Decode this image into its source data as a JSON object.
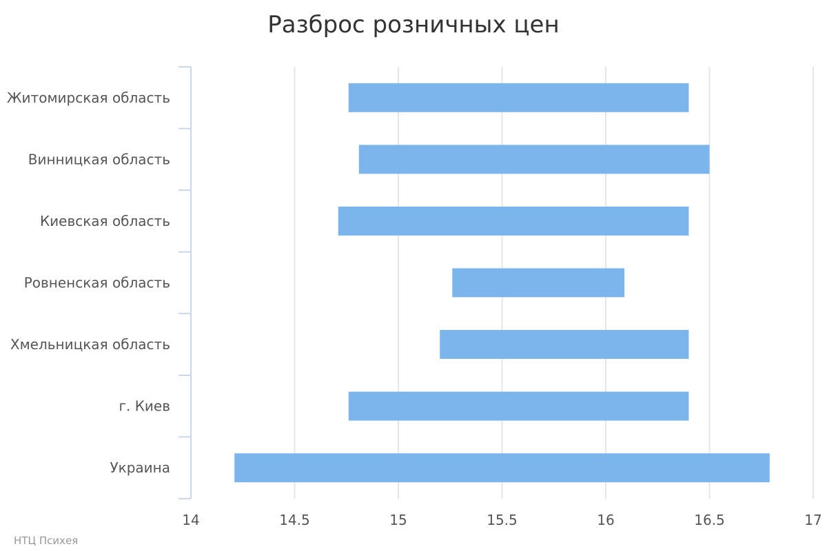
{
  "chart_data": {
    "type": "bar",
    "orientation": "horizontal",
    "range_bars": true,
    "title": "Разброс розничных цен",
    "credit": "НТЦ Психея",
    "xlabel": "",
    "ylabel": "",
    "xlim": [
      14,
      17
    ],
    "x_ticks": [
      14,
      14.5,
      15,
      15.5,
      16,
      16.5,
      17
    ],
    "x_tick_labels": [
      "14",
      "14.5",
      "15",
      "15.5",
      "16",
      "16.5",
      "17"
    ],
    "grid": true,
    "legend": "none",
    "categories": [
      "Житомирская область",
      "Винницкая область",
      "Киевская область",
      "Ровненская область",
      "Хмельницкая область",
      "г. Киев",
      "Украина"
    ],
    "low": [
      14.76,
      14.81,
      14.71,
      15.26,
      15.2,
      14.76,
      14.21
    ],
    "high": [
      16.4,
      16.5,
      16.4,
      16.09,
      16.4,
      16.4,
      16.79
    ],
    "colors": {
      "bar": "#7cb5ec",
      "grid": "#e6e6e6",
      "axis": "#ccd6eb"
    }
  }
}
